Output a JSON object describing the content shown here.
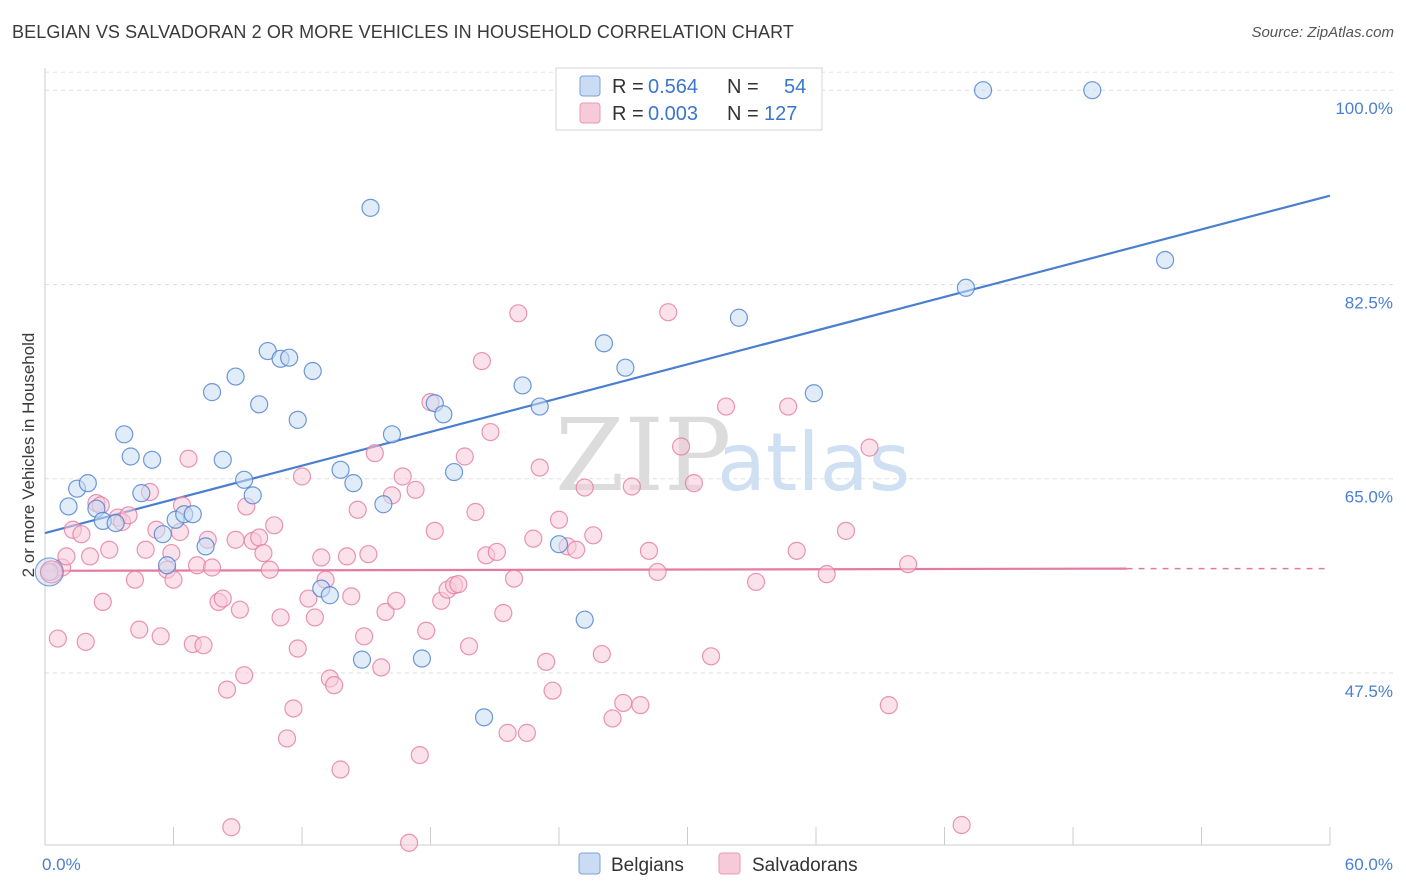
{
  "title": "BELGIAN VS SALVADORAN 2 OR MORE VEHICLES IN HOUSEHOLD CORRELATION CHART",
  "source": "Source: ZipAtlas.com",
  "watermark": {
    "zip": "ZIP",
    "atlas": "atlas"
  },
  "colors": {
    "belgian": "#4a7fd0",
    "salvadoran": "#e57aa0",
    "belgian_fill": "#c9dcf4",
    "salvadoran_fill": "#f7cad9"
  },
  "legend": {
    "rows": [
      {
        "r_label": "R =",
        "r_value": "0.564",
        "n_label": "N =",
        "n_value": "54"
      },
      {
        "r_label": "R =",
        "r_value": "0.003",
        "n_label": "N =",
        "n_value": "127"
      }
    ]
  },
  "bottom_legend": [
    "Belgians",
    "Salvadorans"
  ],
  "chart_data": {
    "type": "scatter",
    "ylabel": "2 or more Vehicles in Household",
    "xlim": [
      0,
      60
    ],
    "ylim": [
      32,
      102
    ],
    "x_tick_labels": [
      "0.0%",
      "60.0%"
    ],
    "y_ticks": [
      100,
      82.5,
      65,
      47.5
    ],
    "y_tick_labels": [
      "100.0%",
      "82.5%",
      "65.0%",
      "47.5%"
    ],
    "series": [
      {
        "name": "Belgians",
        "trend": [
          [
            0,
            60.1
          ],
          [
            60,
            90.5
          ]
        ],
        "points": [
          [
            0.2,
            56.6
          ],
          [
            1.1,
            62.5
          ],
          [
            1.5,
            64.1
          ],
          [
            2.0,
            64.6
          ],
          [
            2.4,
            62.3
          ],
          [
            2.7,
            61.2
          ],
          [
            3.3,
            61.0
          ],
          [
            3.7,
            69.0
          ],
          [
            4.0,
            67.0
          ],
          [
            4.5,
            63.7
          ],
          [
            5.0,
            66.7
          ],
          [
            5.5,
            60.0
          ],
          [
            5.7,
            57.2
          ],
          [
            6.1,
            61.3
          ],
          [
            6.5,
            61.8
          ],
          [
            6.9,
            61.8
          ],
          [
            7.5,
            58.9
          ],
          [
            7.8,
            72.8
          ],
          [
            8.3,
            66.7
          ],
          [
            8.9,
            74.2
          ],
          [
            9.3,
            64.9
          ],
          [
            9.7,
            63.5
          ],
          [
            10.0,
            71.7
          ],
          [
            10.4,
            76.5
          ],
          [
            11.0,
            75.8
          ],
          [
            11.4,
            75.9
          ],
          [
            11.8,
            70.3
          ],
          [
            12.5,
            74.7
          ],
          [
            12.9,
            55.1
          ],
          [
            13.3,
            54.5
          ],
          [
            13.8,
            65.8
          ],
          [
            14.4,
            64.6
          ],
          [
            14.8,
            48.7
          ],
          [
            15.2,
            89.4
          ],
          [
            15.8,
            62.7
          ],
          [
            16.2,
            69.0
          ],
          [
            17.6,
            48.8
          ],
          [
            18.2,
            71.8
          ],
          [
            18.6,
            70.8
          ],
          [
            19.1,
            65.6
          ],
          [
            20.5,
            43.5
          ],
          [
            22.3,
            73.4
          ],
          [
            23.1,
            71.5
          ],
          [
            24.0,
            59.1
          ],
          [
            25.2,
            52.3
          ],
          [
            26.1,
            77.2
          ],
          [
            27.1,
            75.0
          ],
          [
            32.4,
            79.5
          ],
          [
            35.9,
            72.7
          ],
          [
            43.0,
            82.2
          ],
          [
            43.8,
            100.0
          ],
          [
            48.9,
            100.0
          ],
          [
            52.3,
            84.7
          ]
        ]
      },
      {
        "name": "Salvadorans",
        "trend": [
          [
            0,
            56.7
          ],
          [
            50.5,
            56.9
          ]
        ],
        "trend_dashed": [
          [
            50.5,
            56.9
          ],
          [
            60,
            56.9
          ]
        ],
        "points": [
          [
            0.3,
            56.6
          ],
          [
            0.6,
            50.6
          ],
          [
            0.8,
            57.0
          ],
          [
            1.0,
            58.0
          ],
          [
            1.3,
            60.4
          ],
          [
            1.7,
            60.0
          ],
          [
            1.9,
            50.3
          ],
          [
            2.1,
            58.0
          ],
          [
            2.4,
            62.8
          ],
          [
            2.6,
            62.6
          ],
          [
            2.7,
            53.9
          ],
          [
            3.0,
            58.6
          ],
          [
            3.4,
            61.5
          ],
          [
            3.6,
            61.1
          ],
          [
            3.9,
            61.7
          ],
          [
            4.2,
            55.9
          ],
          [
            4.4,
            51.4
          ],
          [
            4.7,
            58.6
          ],
          [
            4.9,
            63.8
          ],
          [
            5.2,
            60.4
          ],
          [
            5.4,
            50.8
          ],
          [
            5.7,
            56.8
          ],
          [
            5.9,
            58.3
          ],
          [
            6.0,
            55.9
          ],
          [
            6.3,
            60.2
          ],
          [
            6.4,
            62.6
          ],
          [
            6.7,
            66.8
          ],
          [
            6.9,
            50.1
          ],
          [
            7.1,
            57.2
          ],
          [
            7.4,
            50.0
          ],
          [
            7.6,
            59.5
          ],
          [
            7.8,
            57.0
          ],
          [
            8.1,
            53.9
          ],
          [
            8.3,
            54.2
          ],
          [
            8.5,
            46.0
          ],
          [
            8.7,
            33.6
          ],
          [
            8.9,
            59.5
          ],
          [
            9.1,
            53.2
          ],
          [
            9.3,
            47.3
          ],
          [
            9.4,
            62.5
          ],
          [
            9.7,
            59.4
          ],
          [
            10.0,
            59.7
          ],
          [
            10.2,
            58.3
          ],
          [
            10.5,
            56.8
          ],
          [
            10.7,
            60.8
          ],
          [
            11.0,
            52.5
          ],
          [
            11.3,
            41.6
          ],
          [
            11.6,
            44.3
          ],
          [
            11.8,
            49.7
          ],
          [
            12.0,
            65.2
          ],
          [
            12.3,
            54.2
          ],
          [
            12.6,
            52.5
          ],
          [
            12.9,
            57.9
          ],
          [
            13.1,
            55.9
          ],
          [
            13.3,
            47.0
          ],
          [
            13.5,
            46.4
          ],
          [
            13.8,
            38.8
          ],
          [
            14.1,
            58.0
          ],
          [
            14.3,
            54.4
          ],
          [
            14.6,
            62.2
          ],
          [
            14.9,
            50.8
          ],
          [
            15.1,
            58.2
          ],
          [
            15.4,
            67.3
          ],
          [
            15.7,
            48.0
          ],
          [
            15.9,
            53.0
          ],
          [
            16.2,
            63.5
          ],
          [
            16.4,
            54.0
          ],
          [
            16.7,
            65.2
          ],
          [
            17.0,
            32.2
          ],
          [
            17.3,
            64.0
          ],
          [
            17.5,
            40.1
          ],
          [
            17.8,
            51.3
          ],
          [
            18.0,
            71.9
          ],
          [
            18.2,
            60.3
          ],
          [
            18.5,
            54.0
          ],
          [
            18.8,
            55.0
          ],
          [
            19.1,
            55.4
          ],
          [
            19.3,
            55.5
          ],
          [
            19.6,
            67.0
          ],
          [
            19.8,
            49.9
          ],
          [
            20.1,
            62.0
          ],
          [
            20.4,
            75.6
          ],
          [
            20.6,
            58.1
          ],
          [
            20.8,
            69.2
          ],
          [
            21.1,
            58.4
          ],
          [
            21.4,
            52.9
          ],
          [
            21.6,
            42.1
          ],
          [
            21.9,
            56.0
          ],
          [
            22.1,
            79.9
          ],
          [
            22.5,
            42.1
          ],
          [
            22.8,
            59.6
          ],
          [
            23.1,
            66.0
          ],
          [
            23.4,
            48.5
          ],
          [
            23.7,
            45.9
          ],
          [
            24.0,
            61.3
          ],
          [
            24.4,
            58.9
          ],
          [
            24.8,
            58.6
          ],
          [
            25.2,
            64.2
          ],
          [
            25.6,
            59.9
          ],
          [
            26.0,
            49.2
          ],
          [
            26.5,
            43.4
          ],
          [
            27.0,
            44.8
          ],
          [
            27.4,
            64.3
          ],
          [
            27.8,
            44.6
          ],
          [
            28.2,
            58.5
          ],
          [
            28.6,
            56.6
          ],
          [
            29.1,
            80.0
          ],
          [
            29.7,
            67.9
          ],
          [
            30.3,
            64.6
          ],
          [
            31.1,
            49.0
          ],
          [
            31.8,
            71.5
          ],
          [
            33.2,
            55.7
          ],
          [
            34.7,
            71.5
          ],
          [
            35.1,
            58.5
          ],
          [
            36.5,
            56.4
          ],
          [
            37.4,
            60.3
          ],
          [
            38.5,
            67.8
          ],
          [
            39.4,
            44.6
          ],
          [
            40.3,
            57.3
          ],
          [
            42.8,
            33.8
          ]
        ]
      }
    ],
    "grid": true,
    "legend_position": "top-center"
  }
}
